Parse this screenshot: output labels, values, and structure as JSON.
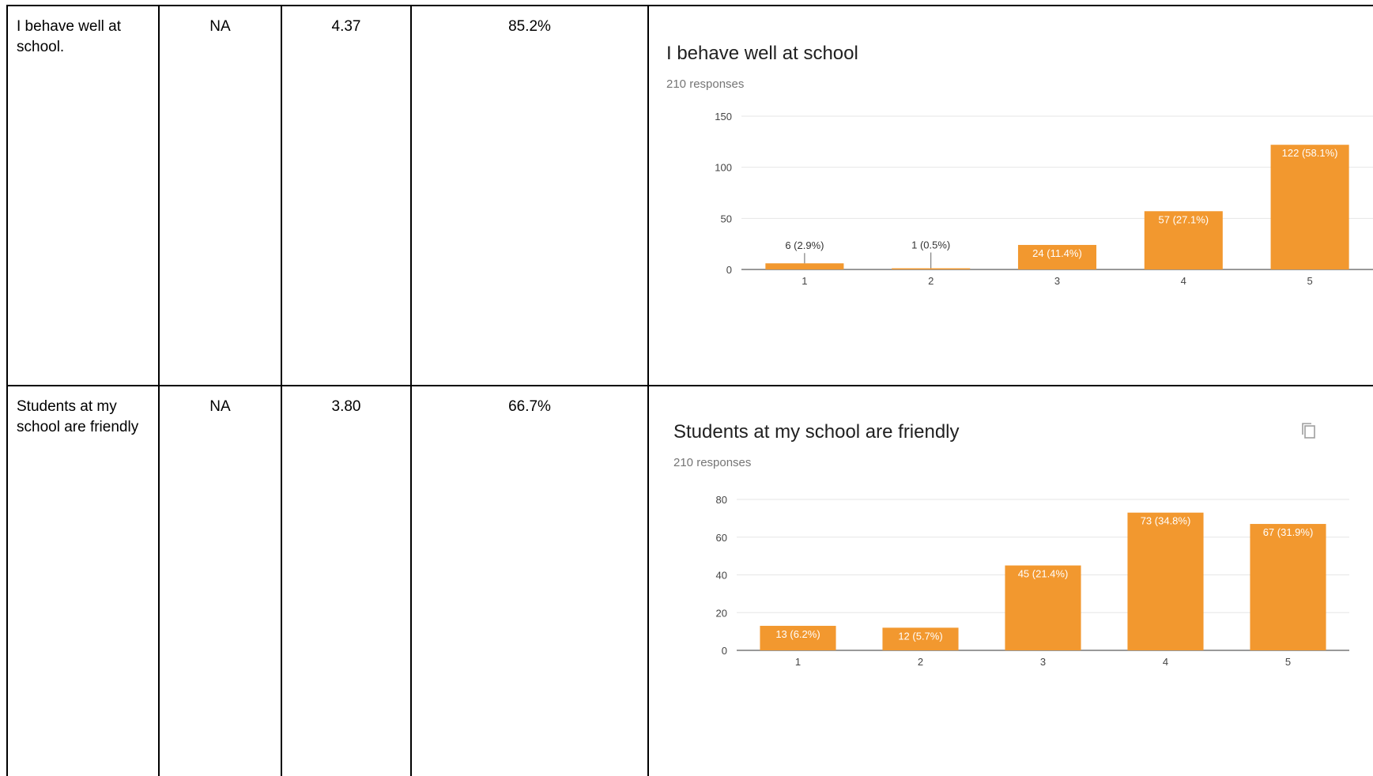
{
  "rows": [
    {
      "statement": "I behave well at school.",
      "col2": "NA",
      "col3": "4.37",
      "col4": "85.2%"
    },
    {
      "statement": "Students at my school are friendly",
      "col2": "NA",
      "col3": "3.80",
      "col4": "66.7%"
    }
  ],
  "chart_data": [
    {
      "type": "bar",
      "title": "I behave well at school",
      "subtitle": "210 responses",
      "categories": [
        "1",
        "2",
        "3",
        "4",
        "5"
      ],
      "values": [
        6,
        1,
        24,
        57,
        122
      ],
      "data_labels": [
        "6 (2.9%)",
        "1 (0.5%)",
        "24 (11.4%)",
        "57 (27.1%)",
        "122 (58.1%)"
      ],
      "yticks": [
        "0",
        "50",
        "100",
        "150"
      ],
      "ylim": [
        0,
        150
      ],
      "bar_color": "#f2982f",
      "grid": true,
      "xlabel": "",
      "ylabel": ""
    },
    {
      "type": "bar",
      "title": "Students at my school are friendly",
      "subtitle": "210 responses",
      "categories": [
        "1",
        "2",
        "3",
        "4",
        "5"
      ],
      "values": [
        13,
        12,
        45,
        73,
        67
      ],
      "data_labels": [
        "13 (6.2%)",
        "12 (5.7%)",
        "45 (21.4%)",
        "73 (34.8%)",
        "67 (31.9%)"
      ],
      "yticks": [
        "0",
        "20",
        "40",
        "60",
        "80"
      ],
      "ylim": [
        0,
        80
      ],
      "bar_color": "#f2982f",
      "grid": true,
      "xlabel": "",
      "ylabel": "",
      "copy_icon": "copy-icon"
    }
  ]
}
